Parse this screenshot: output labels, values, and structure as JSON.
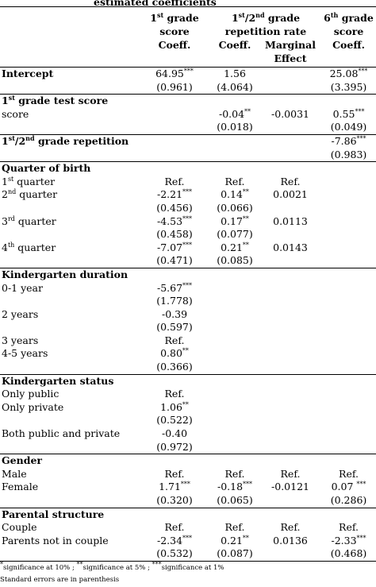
{
  "caption": "estimated coefficients",
  "header": {
    "groups": [
      [
        "1",
        {
          "sup": "st"
        },
        " grade score"
      ],
      [
        "1",
        {
          "sup": "st"
        },
        "/2",
        {
          "sup": "nd"
        },
        " grade repetition rate"
      ],
      [
        "6",
        {
          "sup": "th"
        },
        " grade score"
      ]
    ],
    "subheaders": [
      "Coeff.",
      "Coeff.",
      "Marginal Effect",
      "Coeff."
    ]
  },
  "rows": [
    {
      "section": true,
      "cells": [
        "Intercept",
        [
          "64.95",
          {
            "sup": "***"
          }
        ],
        "1.56",
        null,
        [
          "25.08",
          {
            "sup": "***"
          }
        ]
      ]
    },
    {
      "cells": [
        null,
        "(0.961)",
        "(4.064)",
        null,
        "(3.395)"
      ]
    },
    {
      "section": true,
      "cells": [
        [
          "1",
          {
            "sup": "st"
          },
          " grade test score"
        ],
        null,
        null,
        null,
        null
      ]
    },
    {
      "cells": [
        "score",
        null,
        [
          "-0.04",
          {
            "sup": "**"
          }
        ],
        "-0.0031",
        [
          "0.55",
          {
            "sup": "***"
          }
        ]
      ]
    },
    {
      "cells": [
        null,
        null,
        "(0.018)",
        null,
        "(0.049)"
      ]
    },
    {
      "section": true,
      "cells": [
        [
          "1",
          {
            "sup": "st"
          },
          "/2",
          {
            "sup": "nd"
          },
          " grade repetition"
        ],
        null,
        null,
        null,
        [
          "-7.86",
          {
            "sup": "***"
          }
        ]
      ]
    },
    {
      "cells": [
        null,
        null,
        null,
        null,
        "(0.983)"
      ]
    },
    {
      "section": true,
      "cells": [
        "Quarter of birth",
        null,
        null,
        null,
        null
      ]
    },
    {
      "cells": [
        [
          "1",
          {
            "sup": "st"
          },
          " quarter"
        ],
        "Ref.",
        "Ref.",
        "Ref.",
        null
      ]
    },
    {
      "cells": [
        [
          "2",
          {
            "sup": "nd"
          },
          " quarter"
        ],
        [
          "-2.21",
          {
            "sup": "***"
          }
        ],
        [
          "0.14",
          {
            "sup": "**"
          }
        ],
        "0.0021",
        null
      ]
    },
    {
      "cells": [
        null,
        "(0.456)",
        "(0.066)",
        null,
        null
      ]
    },
    {
      "cells": [
        [
          "3",
          {
            "sup": "rd"
          },
          " quarter"
        ],
        [
          "-4.53",
          {
            "sup": "***"
          }
        ],
        [
          "0.17",
          {
            "sup": "**"
          }
        ],
        "0.0113",
        null
      ]
    },
    {
      "cells": [
        null,
        "(0.458)",
        "(0.077)",
        null,
        null
      ]
    },
    {
      "cells": [
        [
          "4",
          {
            "sup": "th"
          },
          " quarter"
        ],
        [
          "-7.07",
          {
            "sup": "***"
          }
        ],
        [
          "0.21",
          {
            "sup": "**"
          }
        ],
        "0.0143",
        null
      ]
    },
    {
      "cells": [
        null,
        "(0.471)",
        "(0.085)",
        null,
        null
      ]
    },
    {
      "section": true,
      "cells": [
        "Kindergarten duration",
        null,
        null,
        null,
        null
      ]
    },
    {
      "cells": [
        "0-1 year",
        [
          "-5.67",
          {
            "sup": "***"
          }
        ],
        null,
        null,
        null
      ]
    },
    {
      "cells": [
        null,
        "(1.778)",
        null,
        null,
        null
      ]
    },
    {
      "cells": [
        "2 years",
        "-0.39",
        null,
        null,
        null
      ]
    },
    {
      "cells": [
        null,
        "(0.597)",
        null,
        null,
        null
      ]
    },
    {
      "cells": [
        "3 years",
        "Ref.",
        null,
        null,
        null
      ]
    },
    {
      "cells": [
        "4-5 years",
        [
          "0.80",
          {
            "sup": "**"
          }
        ],
        null,
        null,
        null
      ]
    },
    {
      "cells": [
        null,
        "(0.366)",
        null,
        null,
        null
      ]
    },
    {
      "section": true,
      "cells": [
        "Kindergarten status",
        null,
        null,
        null,
        null
      ]
    },
    {
      "cells": [
        "Only public",
        "Ref.",
        null,
        null,
        null
      ]
    },
    {
      "cells": [
        "Only private",
        [
          "1.06",
          {
            "sup": "**"
          }
        ],
        null,
        null,
        null
      ]
    },
    {
      "cells": [
        null,
        "(0.522)",
        null,
        null,
        null
      ]
    },
    {
      "cells": [
        "Both public and private",
        "-0.40",
        null,
        null,
        null
      ]
    },
    {
      "cells": [
        null,
        "(0.972)",
        null,
        null,
        null
      ]
    },
    {
      "section": true,
      "cells": [
        "Gender",
        null,
        null,
        null,
        null
      ]
    },
    {
      "cells": [
        "Male",
        "Ref.",
        "Ref.",
        "Ref.",
        "Ref."
      ]
    },
    {
      "cells": [
        "Female",
        [
          "1.71",
          {
            "sup": "***"
          }
        ],
        [
          "-0.18",
          {
            "sup": "***"
          }
        ],
        "-0.0121",
        [
          "0.07 ",
          {
            "sup": "***"
          }
        ]
      ]
    },
    {
      "cells": [
        null,
        "(0.320)",
        "(0.065)",
        null,
        "(0.286)"
      ]
    },
    {
      "section": true,
      "cells": [
        "Parental structure",
        null,
        null,
        null,
        null
      ]
    },
    {
      "cells": [
        "Couple",
        "Ref.",
        "Ref.",
        "Ref.",
        "Ref."
      ]
    },
    {
      "cells": [
        "Parents not in couple",
        [
          "-2.34",
          {
            "sup": "***"
          }
        ],
        [
          "0.21",
          {
            "sup": "**"
          }
        ],
        "0.0136",
        [
          "-2.33",
          {
            "sup": "***"
          }
        ]
      ]
    },
    {
      "cells": [
        null,
        "(0.532)",
        "(0.087)",
        null,
        "(0.468)"
      ]
    }
  ],
  "footnotes": [
    [
      {
        "sup": "*"
      },
      "significance at 10% ; ",
      {
        "sup": "**"
      },
      "significance at 5% ; ",
      {
        "sup": "***"
      },
      "significance at 1%"
    ],
    "Standard errors are in parenthesis"
  ]
}
